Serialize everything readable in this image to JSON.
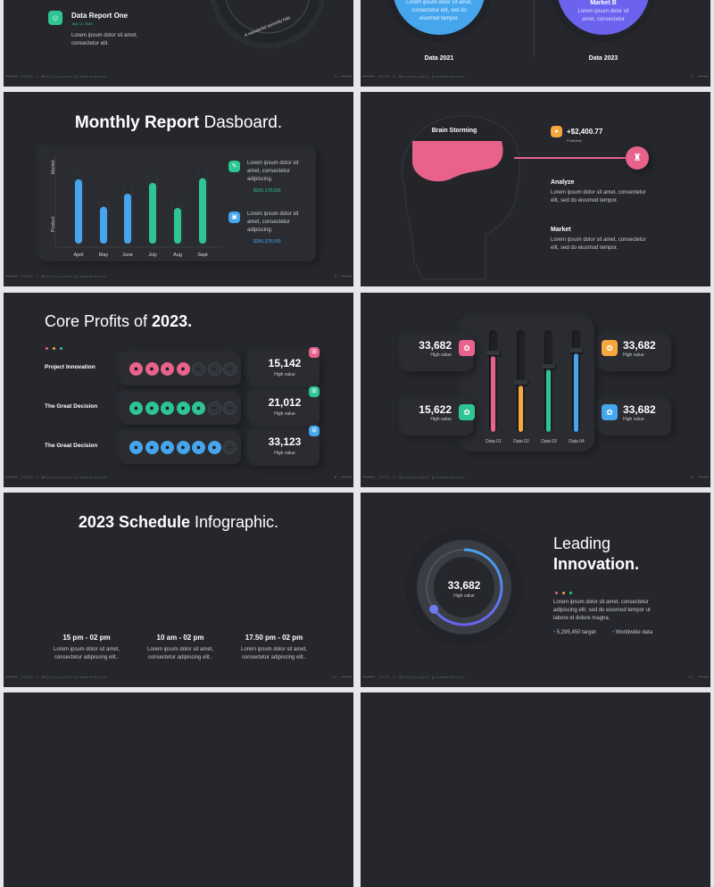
{
  "footer": {
    "label": "2023 // Multiproject presentation"
  },
  "colors": {
    "pink": "#e8628c",
    "orange": "#f5a840",
    "green": "#2ec592",
    "blue": "#45a6ee",
    "purple": "#6b63ee",
    "slide_bg": "#25272c"
  },
  "slide4": {
    "icon": "chat-icon",
    "title": "Data Report One",
    "date": "July 11, 2023",
    "text1": "Lorem ipsum dolor sit amet,",
    "text2": "consectetur elit.",
    "dial_text": "A wonderful serenity has",
    "page": "4"
  },
  "slide5": {
    "left": {
      "text1": "Lorem ipsum dolor sit amet,",
      "text2": "consectetur elit, sed do",
      "text3": "eiusmod tempor.",
      "label": "Data 2021"
    },
    "right": {
      "title": "Market B",
      "text1": "Lorem ipsum dolor sit",
      "text2": "amet, consectetur",
      "label": "Data 2023"
    },
    "page": "5"
  },
  "slide6": {
    "title_bold": "Monthly Report",
    "title_rest": " Dasboard.",
    "legend": [
      {
        "icon": "pen-icon",
        "text1": "Lorem ipsum dolor sit",
        "text2": "amet, consectetur",
        "text3": "adipiscing.",
        "value": "$326,178,000"
      },
      {
        "icon": "box-icon",
        "text1": "Lorem ipsum dolor sit",
        "text2": "amet, consectetur",
        "text3": "adipiscing.",
        "value": "$356,378,000"
      }
    ],
    "page": "6"
  },
  "chart_data": {
    "type": "bar",
    "categories": [
      "April",
      "May",
      "June",
      "July",
      "Aug",
      "Sept"
    ],
    "values": [
      54,
      31,
      42,
      51,
      30,
      55
    ],
    "colors": [
      "#45a6ee",
      "#45a6ee",
      "#45a6ee",
      "#2ec592",
      "#2ec592",
      "#2ec592"
    ],
    "ylabel_top": "Market",
    "ylabel_bottom": "Product",
    "grid": false
  },
  "slide7": {
    "brain_label": "Brain Storming",
    "amount": "+$2,400.77",
    "amount_sub": "Profitable",
    "coin_icon": "coin-icon",
    "trophy_icon": "trophy-icon",
    "items": [
      {
        "title": "Analyze",
        "text1": "Lorem ipsum dolor sit amet, consectetur",
        "text2": "elit, sed do eiusmod tempor."
      },
      {
        "title": "Market",
        "text1": "Lorem ipsum dolor sit amet, consectetur",
        "text2": "elit, sed do eiusmod tempor."
      }
    ],
    "page": "7"
  },
  "slide8": {
    "title_rest": "Core Profits of ",
    "title_bold": "2023.",
    "rows": [
      {
        "label": "Project Innovation",
        "filled": 4,
        "total": 7,
        "color": "#e8628c",
        "value": "15,142",
        "sub": "High value",
        "icon": "cart-icon"
      },
      {
        "label": "The Great Decision",
        "filled": 5,
        "total": 7,
        "color": "#2ec592",
        "value": "21,012",
        "sub": "High value",
        "icon": "store-icon"
      },
      {
        "label": "The Great Decision",
        "filled": 6,
        "total": 7,
        "color": "#45a6ee",
        "value": "33,123",
        "sub": "High value",
        "icon": "cart-icon"
      }
    ],
    "page": "8"
  },
  "slide9": {
    "cards": [
      {
        "value": "33,682",
        "sub": "High value",
        "icon": "link-icon",
        "color": "#e8628c"
      },
      {
        "value": "15,622",
        "sub": "High value",
        "icon": "gauge-icon",
        "color": "#2ec592"
      },
      {
        "value": "33,682",
        "sub": "High value",
        "icon": "cloud-icon",
        "color": "#f5a840"
      },
      {
        "value": "33,682",
        "sub": "High value",
        "icon": "mail-icon",
        "color": "#45a6ee"
      }
    ],
    "sliders": [
      {
        "label": "Data 01",
        "level": 0.75,
        "color": "#e8628c"
      },
      {
        "label": "Data 02",
        "level": 0.46,
        "color": "#f5a840"
      },
      {
        "label": "Data 03",
        "level": 0.61,
        "color": "#2ec592"
      },
      {
        "label": "Data 04",
        "level": 0.77,
        "color": "#45a6ee"
      }
    ],
    "page": "9"
  },
  "slide10": {
    "title_bold": "2023 Schedule",
    "title_rest": " Infographic.",
    "clocks": [
      {
        "time": "15 pm - 02 pm",
        "text1": "Lorem ipsum dolor sit amet,",
        "text2": "consectetur adipiscing elit..",
        "color": "#e8628c",
        "hands": [
          30,
          210,
          95
        ]
      },
      {
        "time": "10 am - 02 pm",
        "text1": "Lorem ipsum dolor sit amet,",
        "text2": "consectetur adipiscing elit..",
        "color": "#f5a840",
        "hands": [
          40,
          220,
          290
        ]
      },
      {
        "time": "17.50 pm - 02 pm",
        "text1": "Lorem ipsum dolor sit amet,",
        "text2": "consectetur adipiscing elit..",
        "color": "#2ec592",
        "hands": [
          90,
          150,
          300
        ]
      }
    ],
    "page": "10"
  },
  "slide11": {
    "value": "33,682",
    "sub": "High value",
    "progress": 0.65,
    "title1": "Leading",
    "title2": "Innovation.",
    "text1": "Lorem ipsum dolor sit amet, consectetur",
    "text2": "adipiscing elit, sed do eiusmod tempor ut",
    "text3": "labore et dolore magna.",
    "bullet1": "5,295,450 target",
    "bullet2": "Worldwide data",
    "page": "11"
  }
}
